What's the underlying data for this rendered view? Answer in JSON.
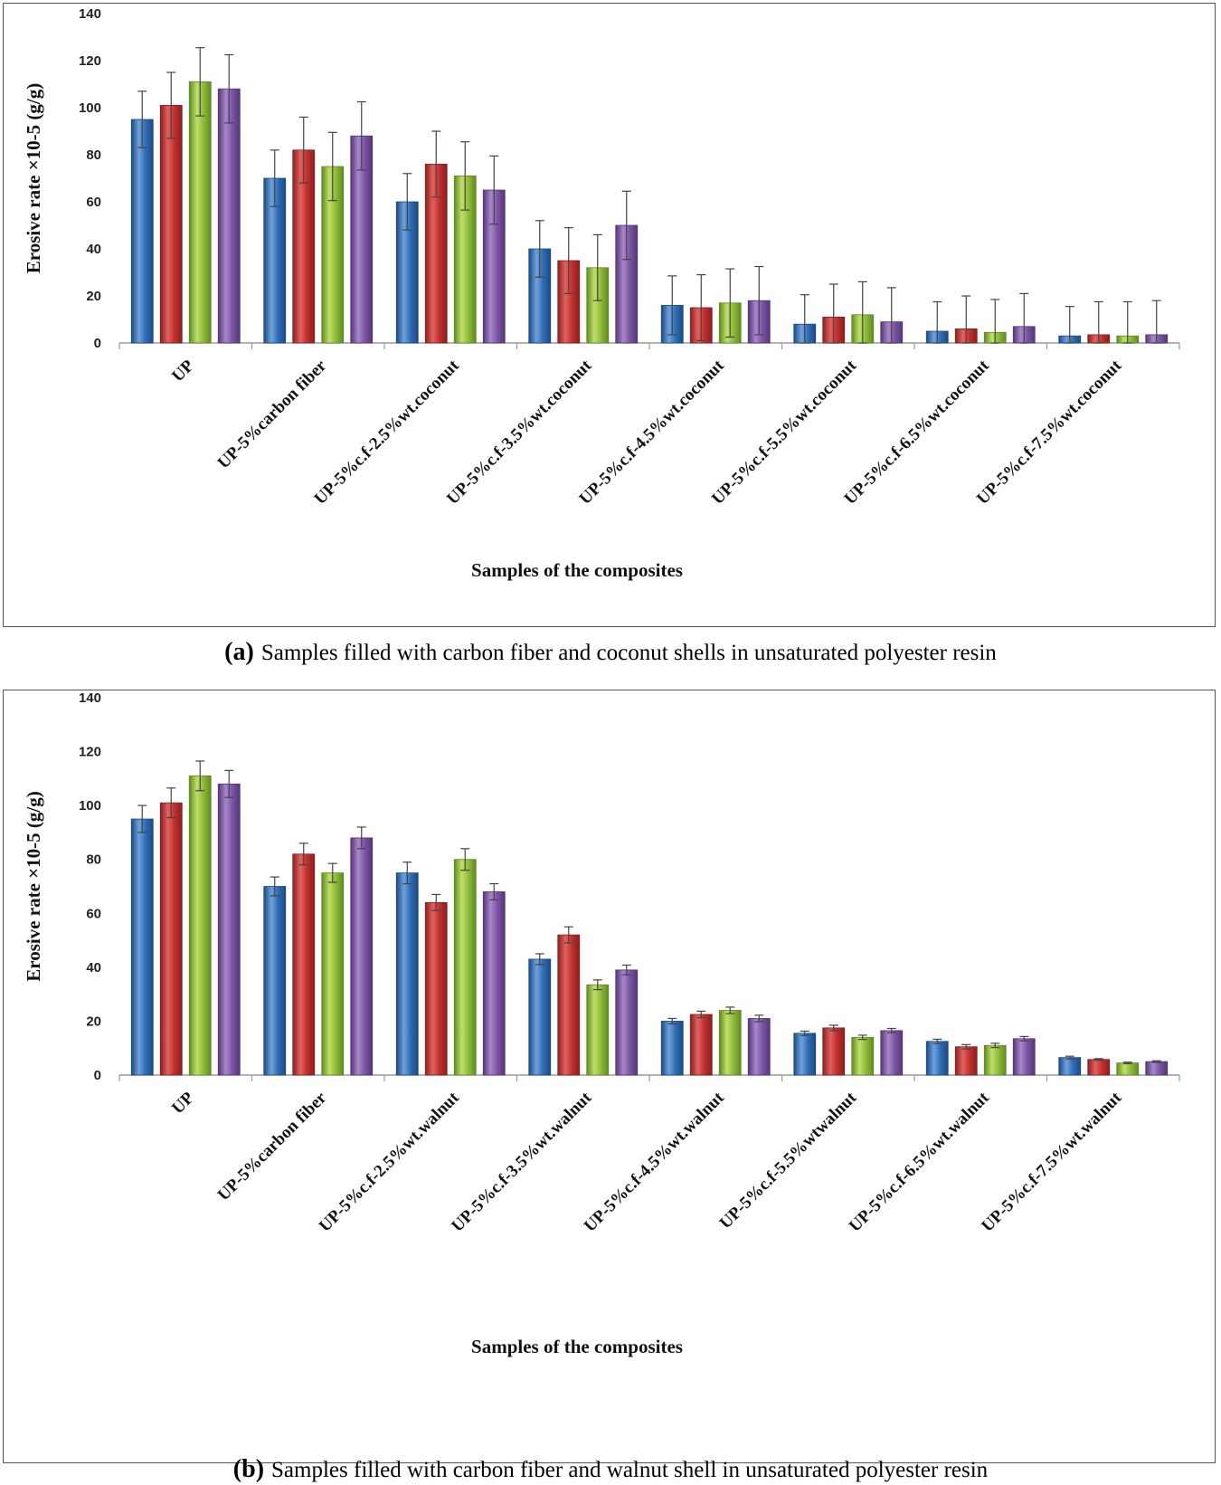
{
  "colors": {
    "series": [
      "#2f6db5",
      "#c0302e",
      "#8fbb3a",
      "#7b54a3"
    ],
    "series_dark": [
      "#1b4a82",
      "#88201f",
      "#5f8a22",
      "#553677"
    ],
    "series_light": [
      "#6fa2dc",
      "#e2625f",
      "#bfe06a",
      "#a887cb"
    ],
    "axis": "#999999",
    "error_bar": "#444444"
  },
  "captions": {
    "a_tag": "(a)",
    "a_text": "Samples filled with carbon fiber and coconut shells in unsaturated polyester resin",
    "b_tag": "(b)",
    "b_text": "Samples filled with carbon fiber and  walnut shell in unsaturated polyester resin"
  },
  "chart_data": [
    {
      "type": "bar",
      "title": "",
      "xlabel": "Samples of the composites",
      "ylabel": "Erosive rate ×10-5 (g/g)",
      "ylim": [
        0,
        140
      ],
      "yticks": [
        0,
        20,
        40,
        60,
        80,
        100,
        120,
        140
      ],
      "grid": false,
      "legend": "none",
      "categories": [
        "UP",
        "UP-5%carbon fiber",
        "UP-5%c.f-2.5%wt.coconut",
        "UP-5%c.f-3.5%wt.coconut",
        "UP-5%c.f-4.5%wt.coconut",
        "UP-5%c.f-5.5%wt.coconut",
        "UP-5%c.f-6.5%wt.coconut",
        "UP-5%c.f-7.5%wt.coconut"
      ],
      "series": [
        {
          "values": [
            95,
            70,
            60,
            40,
            16,
            8,
            5,
            3
          ],
          "errors": [
            12,
            12,
            12,
            12,
            12.5,
            12.5,
            12.5,
            12.5
          ]
        },
        {
          "values": [
            101,
            82,
            76,
            35,
            15,
            11,
            6,
            3.5
          ],
          "errors": [
            14,
            14,
            14,
            14,
            14,
            14,
            14,
            14
          ]
        },
        {
          "values": [
            111,
            75,
            71,
            32,
            17,
            12,
            4.5,
            3
          ],
          "errors": [
            14.5,
            14.5,
            14.5,
            14,
            14.5,
            14,
            14,
            14.5
          ]
        },
        {
          "values": [
            108,
            88,
            65,
            50,
            18,
            9,
            7,
            3.5
          ],
          "errors": [
            14.5,
            14.5,
            14.5,
            14.5,
            14.5,
            14.5,
            14,
            14.5
          ]
        }
      ]
    },
    {
      "type": "bar",
      "title": "",
      "xlabel": "Samples of the composites",
      "ylabel": "Erosive rate ×10-5 (g/g)",
      "ylim": [
        0,
        140
      ],
      "yticks": [
        0,
        20,
        40,
        60,
        80,
        100,
        120,
        140
      ],
      "grid": false,
      "legend": "none",
      "categories": [
        "UP",
        "UP-5%carbon fiber",
        "UP-5%c.f-2.5%wt.walnut",
        "UP-5%c.f-3.5%wt.walnut",
        "UP-5%c.f-4.5%wt.walnut",
        "UP-5%c.f-5.5%wtwalnut",
        "UP-5%c.f-6.5%wt.walnut",
        "UP-5%c.f-7.5%wt.walnut"
      ],
      "series": [
        {
          "values": [
            95,
            70,
            75,
            43,
            20,
            15.5,
            12.5,
            6.5
          ],
          "errors": [
            5,
            3.5,
            4,
            2,
            1,
            0.8,
            0.8,
            0.5
          ]
        },
        {
          "values": [
            101,
            82,
            64,
            52,
            22.5,
            17.5,
            10.5,
            5.8
          ],
          "errors": [
            5.5,
            4,
            3,
            3,
            1.2,
            1,
            0.8,
            0.3
          ]
        },
        {
          "values": [
            111,
            75,
            80,
            33.5,
            24,
            14,
            11,
            4.5
          ],
          "errors": [
            5.5,
            3.5,
            4,
            1.8,
            1.2,
            0.8,
            0.8,
            0.3
          ]
        },
        {
          "values": [
            108,
            88,
            68,
            39,
            21,
            16.5,
            13.5,
            5
          ],
          "errors": [
            5,
            4,
            3,
            1.8,
            1.2,
            0.8,
            0.8,
            0.3
          ]
        }
      ]
    }
  ]
}
